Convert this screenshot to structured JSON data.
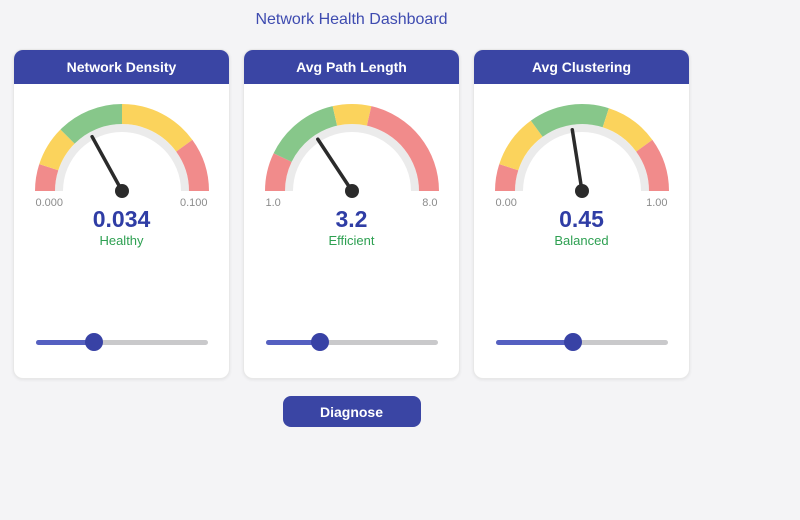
{
  "page": {
    "title": "Network Health Dashboard",
    "background": "#f4f4f6"
  },
  "colors": {
    "primary": "#3a45a4",
    "title": "#3e4bb0",
    "value": "#2f3da5",
    "status": "#2ea052",
    "tick": "#8c8c8c",
    "needle": "#2b2b2b",
    "ring": "#ebebeb",
    "track": "#c9c9cb",
    "slider_fill": "#5560c1",
    "slider_thumb": "#3842a5",
    "green": "#87c78a",
    "yellow": "#fbd35c",
    "red": "#f18b8b"
  },
  "gauges": [
    {
      "title": "Network Density",
      "type": "gauge",
      "min": 0.0,
      "max": 0.1,
      "min_label": "0.000",
      "max_label": "0.100",
      "value": 0.034,
      "value_label": "0.034",
      "status": "Healthy",
      "segments": [
        {
          "from": 0.0,
          "to": 0.01,
          "color": "red"
        },
        {
          "from": 0.01,
          "to": 0.025,
          "color": "yellow"
        },
        {
          "from": 0.025,
          "to": 0.05,
          "color": "green"
        },
        {
          "from": 0.05,
          "to": 0.08,
          "color": "yellow"
        },
        {
          "from": 0.08,
          "to": 0.1,
          "color": "red"
        }
      ]
    },
    {
      "title": "Avg Path Length",
      "type": "gauge",
      "min": 1.0,
      "max": 8.0,
      "min_label": "1.0",
      "max_label": "8.0",
      "value": 3.2,
      "value_label": "3.2",
      "status": "Efficient",
      "segments": [
        {
          "from": 1.0,
          "to": 2.0,
          "color": "red"
        },
        {
          "from": 2.0,
          "to": 4.0,
          "color": "green"
        },
        {
          "from": 4.0,
          "to": 5.0,
          "color": "yellow"
        },
        {
          "from": 5.0,
          "to": 8.0,
          "color": "red"
        }
      ]
    },
    {
      "title": "Avg Clustering",
      "type": "gauge",
      "min": 0.0,
      "max": 1.0,
      "min_label": "0.00",
      "max_label": "1.00",
      "value": 0.45,
      "value_label": "0.45",
      "status": "Balanced",
      "segments": [
        {
          "from": 0.0,
          "to": 0.1,
          "color": "red"
        },
        {
          "from": 0.1,
          "to": 0.3,
          "color": "yellow"
        },
        {
          "from": 0.3,
          "to": 0.6,
          "color": "green"
        },
        {
          "from": 0.6,
          "to": 0.8,
          "color": "yellow"
        },
        {
          "from": 0.8,
          "to": 1.0,
          "color": "red"
        }
      ]
    }
  ],
  "diagnose_button": {
    "label": "Diagnose"
  }
}
